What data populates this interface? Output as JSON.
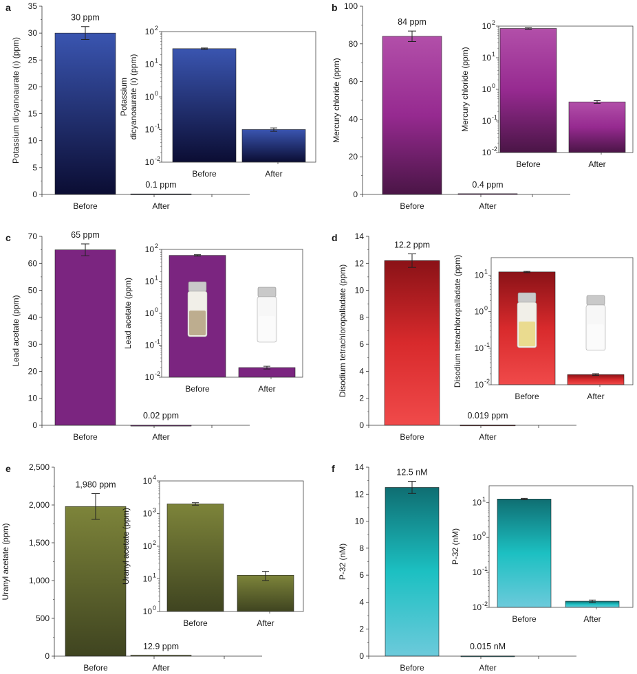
{
  "chart_data": [
    {
      "type": "bar",
      "panel": "a",
      "categories": [
        "Before",
        "After"
      ],
      "values": [
        30,
        0.1
      ],
      "errors": [
        1.2,
        0.012
      ],
      "value_labels": [
        "30 ppm",
        "0.1 ppm"
      ],
      "ylabel": "Potassium dicyanoaurate (ı) (ppm)",
      "ylim": [
        0,
        35
      ],
      "yticks": [
        0,
        5,
        10,
        15,
        20,
        25,
        30,
        35
      ],
      "ytick_labels": [
        "0",
        "5",
        "10",
        "15",
        "20",
        "25",
        "30",
        "35"
      ],
      "inset": {
        "ylabel_lines": [
          "Potassium",
          "dicyanoaurate (ı) (ppm)"
        ],
        "yscale": "log",
        "ylim": [
          0.01,
          100
        ],
        "ytick_labels": [
          "10",
          "10",
          "10",
          "10",
          "10"
        ],
        "ytick_exps": [
          "-2",
          "-1",
          "0",
          "1",
          "2"
        ]
      },
      "colors": [
        "#3a55b0",
        "#0b0d33"
      ]
    },
    {
      "type": "bar",
      "panel": "b",
      "categories": [
        "Before",
        "After"
      ],
      "values": [
        84,
        0.4
      ],
      "errors": [
        2.8,
        0.04
      ],
      "value_labels": [
        "84 ppm",
        "0.4 ppm"
      ],
      "ylabel": "Mercury chloride (ppm)",
      "ylim": [
        0,
        100
      ],
      "yticks": [
        0,
        20,
        40,
        60,
        80,
        100
      ],
      "ytick_labels": [
        "0",
        "20",
        "40",
        "60",
        "80",
        "100"
      ],
      "inset": {
        "ylabel_lines": [
          "Mercury chloride (ppm)"
        ],
        "yscale": "log",
        "ylim": [
          0.01,
          100
        ],
        "ytick_labels": [
          "10",
          "10",
          "10",
          "10",
          "10"
        ],
        "ytick_exps": [
          "-2",
          "-1",
          "0",
          "1",
          "2"
        ]
      },
      "colors": [
        "#b24fa9",
        "#962a90",
        "#4a1546"
      ]
    },
    {
      "type": "bar",
      "panel": "c",
      "categories": [
        "Before",
        "After"
      ],
      "values": [
        65,
        0.02
      ],
      "errors": [
        2.2,
        0.002
      ],
      "value_labels": [
        "65 ppm",
        "0.02 ppm"
      ],
      "ylabel": "Lead acetate (ppm)",
      "ylim": [
        0,
        70
      ],
      "yticks": [
        0,
        10,
        20,
        30,
        40,
        50,
        60,
        70
      ],
      "ytick_labels": [
        "0",
        "10",
        "20",
        "30",
        "40",
        "50",
        "60",
        "70"
      ],
      "inset": {
        "ylabel_lines": [
          "Lead acetate (ppm)"
        ],
        "yscale": "log",
        "ylim": [
          0.01,
          100
        ],
        "ytick_labels": [
          "10",
          "10",
          "10",
          "10",
          "10"
        ],
        "ytick_exps": [
          "-2",
          "-1",
          "0",
          "1",
          "2"
        ],
        "vials": true
      },
      "colors": [
        "#7b2580",
        "#7b2580"
      ]
    },
    {
      "type": "bar",
      "panel": "d",
      "categories": [
        "Before",
        "After"
      ],
      "values": [
        12.2,
        0.019
      ],
      "errors": [
        0.5,
        0.001
      ],
      "value_labels": [
        "12.2 ppm",
        "0.019 ppm"
      ],
      "ylabel": "Disodium tetrachloropalladate (ppm)",
      "ylim": [
        0,
        14
      ],
      "yticks": [
        0,
        2,
        4,
        6,
        8,
        10,
        12,
        14
      ],
      "ytick_labels": [
        "0",
        "2",
        "4",
        "6",
        "8",
        "10",
        "12",
        "14"
      ],
      "inset": {
        "ylabel_lines": [
          "Disodium tetrachloropalladate (ppm)"
        ],
        "yscale": "log",
        "ylim": [
          0.01,
          30
        ],
        "ytick_labels": [
          "10",
          "10",
          "10",
          "10"
        ],
        "ytick_exps": [
          "-2",
          "-1",
          "0",
          "1"
        ],
        "vials": true
      },
      "colors": [
        "#8a1217",
        "#d82a2c",
        "#f04a4a"
      ]
    },
    {
      "type": "bar",
      "panel": "e",
      "categories": [
        "Before",
        "After"
      ],
      "values": [
        1980,
        12.9
      ],
      "errors": [
        170,
        4
      ],
      "value_labels": [
        "1,980 ppm",
        "12.9 ppm"
      ],
      "ylabel": "Uranyl acetate (ppm)",
      "ylim": [
        0,
        2500
      ],
      "yticks": [
        0,
        500,
        1000,
        1500,
        2000,
        2500
      ],
      "ytick_labels": [
        "0",
        "500",
        "1,000",
        "1,500",
        "2,000",
        "2,500"
      ],
      "inset": {
        "ylabel_lines": [
          "Uranyl acetate (ppm)"
        ],
        "yscale": "log",
        "ylim": [
          1,
          10000
        ],
        "ytick_labels": [
          "10",
          "10",
          "10",
          "10",
          "10"
        ],
        "ytick_exps": [
          "0",
          "1",
          "2",
          "3",
          "4"
        ]
      },
      "colors": [
        "#7d843a",
        "#3f4420"
      ]
    },
    {
      "type": "bar",
      "panel": "f",
      "categories": [
        "Before",
        "After"
      ],
      "values": [
        12.5,
        0.015
      ],
      "errors": [
        0.45,
        0.0012
      ],
      "value_labels": [
        "12.5 nM",
        "0.015 nM"
      ],
      "ylabel": "P-32 (nM)",
      "ylim": [
        0,
        14
      ],
      "yticks": [
        0,
        2,
        4,
        6,
        8,
        10,
        12,
        14
      ],
      "ytick_labels": [
        "0",
        "2",
        "4",
        "6",
        "8",
        "10",
        "12",
        "14"
      ],
      "inset": {
        "ylabel_lines": [
          "P-32 (nM)"
        ],
        "yscale": "log",
        "ylim": [
          0.01,
          30
        ],
        "ytick_labels": [
          "10",
          "10",
          "10",
          "10"
        ],
        "ytick_exps": [
          "-2",
          "-1",
          "0",
          "1"
        ]
      },
      "colors": [
        "#0f6e72",
        "#1cc0c2",
        "#6ccadb"
      ]
    }
  ]
}
